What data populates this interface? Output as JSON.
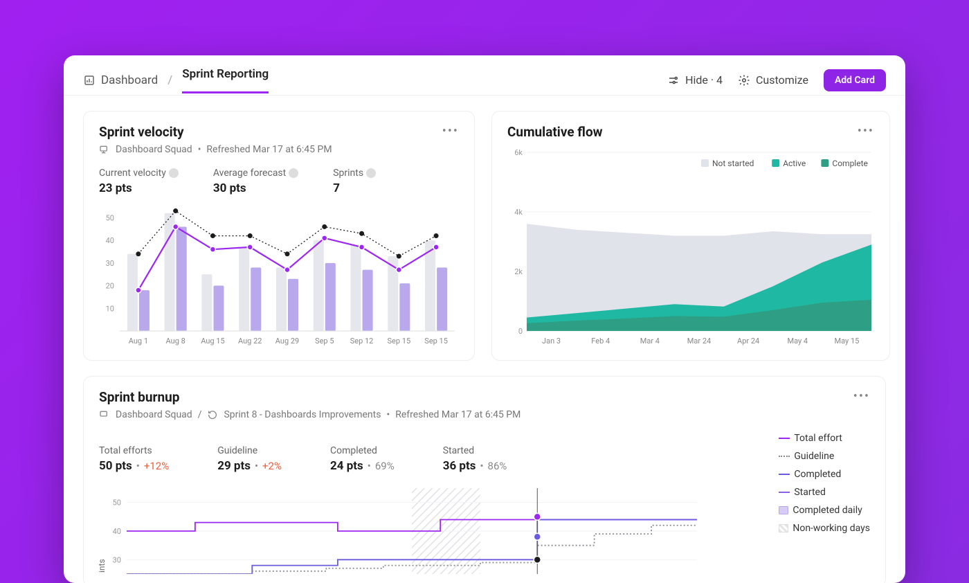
{
  "header": {
    "breadcrumb_root": "Dashboard",
    "breadcrumb_current": "Sprint Reporting",
    "hide_label": "Hide · 4",
    "customize_label": "Customize",
    "add_card_label": "Add Card",
    "accent_color": "#8e24e6"
  },
  "velocity_card": {
    "title": "Sprint velocity",
    "meta_squad": "Dashboard Squad",
    "meta_refreshed": "Refreshed Mar 17 at 6:45 PM",
    "kpis": {
      "current_label": "Current velocity",
      "current_value": "23 pts",
      "avg_label": "Average forecast",
      "avg_value": "30 pts",
      "sprints_label": "Sprints",
      "sprints_value": "7"
    },
    "chart": {
      "type": "bar+line",
      "x_labels": [
        "Aug 1",
        "Aug 8",
        "Aug 15",
        "Aug 22",
        "Aug 29",
        "Sep 5",
        "Sep 12",
        "Sep 15",
        "Sep 15"
      ],
      "y_ticks": [
        10,
        20,
        30,
        40,
        50
      ],
      "ylim": [
        0,
        55
      ],
      "bar_light_color": "#e6e6ed",
      "bar_purple_color": "#b9a9ec",
      "line_purple_color": "#9c27f0",
      "line_forecast_color": "#1c1c1c",
      "grid_color": "#f0f0f3",
      "label_fontsize": 11,
      "bars_light": [
        34,
        52,
        25,
        37,
        28,
        40,
        38,
        33,
        40
      ],
      "bars_purple": [
        18,
        46,
        20,
        28,
        23,
        30,
        27,
        21,
        28
      ],
      "points_purple": [
        18,
        46,
        36,
        37,
        27,
        41,
        37,
        27,
        37
      ],
      "points_black": [
        34,
        53,
        42,
        42,
        34,
        46,
        43,
        33,
        42
      ]
    }
  },
  "cumulative_card": {
    "title": "Cumulative flow",
    "legend": {
      "not_started": "Not started",
      "active": "Active",
      "complete": "Complete"
    },
    "chart": {
      "type": "area",
      "x_labels": [
        "Jan 3",
        "Feb 4",
        "Mar 4",
        "Mar 24",
        "Apr 24",
        "May 4",
        "May 15"
      ],
      "y_ticks": [
        "0",
        "2k",
        "4k",
        "6k"
      ],
      "ylim": [
        0,
        6000
      ],
      "colors": {
        "not_started": "#e1e3ea",
        "active": "#1fb9a3",
        "complete": "#2e9f85"
      },
      "grid_color": "#eef0f3",
      "series_top": [
        3600,
        3400,
        3300,
        3200,
        3200,
        3350,
        3250,
        3250
      ],
      "series_active": [
        450,
        600,
        750,
        900,
        820,
        1500,
        2300,
        2900
      ],
      "series_complete": [
        260,
        350,
        420,
        500,
        480,
        700,
        950,
        1050
      ]
    }
  },
  "burnup_card": {
    "title": "Sprint burnup",
    "meta_squad": "Dashboard Squad",
    "meta_sprint": "Sprint 8 - Dashboards Improvements",
    "meta_refreshed": "Refreshed Mar 17 at 6:45 PM",
    "kpis": {
      "total_label": "Total efforts",
      "total_value": "50 pts",
      "total_delta": "+12%",
      "guideline_label": "Guideline",
      "guideline_value": "29 pts",
      "guideline_delta": "+2%",
      "completed_label": "Completed",
      "completed_value": "24 pts",
      "completed_pct": "69%",
      "started_label": "Started",
      "started_value": "36 pts",
      "started_pct": "86%"
    },
    "legend": {
      "total": "Total effort",
      "guideline": "Guideline",
      "completed": "Completed",
      "started": "Started",
      "daily": "Completed daily",
      "nonworking": "Non-working days"
    },
    "chart": {
      "type": "burnup",
      "y_ticks": [
        30,
        40,
        50
      ],
      "ylim": [
        25,
        55
      ],
      "y_axis_label": "ints",
      "colors": {
        "total": "#9c27f0",
        "guideline": "#8a8a93",
        "completed": "#6a5ae0",
        "started": "#8a62e6",
        "daily_fill": "#d6ccf5"
      },
      "hatch_region": [
        0.5,
        0.62
      ],
      "total_steps": [
        [
          0.0,
          40
        ],
        [
          0.12,
          40
        ],
        [
          0.12,
          43
        ],
        [
          0.37,
          43
        ],
        [
          0.37,
          40
        ],
        [
          0.55,
          40
        ],
        [
          0.55,
          44
        ],
        [
          1.0,
          44
        ]
      ],
      "completed_steps": [
        [
          0.0,
          25
        ],
        [
          0.22,
          25
        ],
        [
          0.22,
          28
        ],
        [
          0.37,
          28
        ],
        [
          0.37,
          30
        ],
        [
          0.72,
          30
        ],
        [
          0.72,
          44
        ],
        [
          1.0,
          44
        ]
      ],
      "guideline_steps": [
        [
          0.0,
          25
        ],
        [
          0.22,
          25
        ],
        [
          0.22,
          26
        ],
        [
          0.35,
          26
        ],
        [
          0.35,
          27
        ],
        [
          0.45,
          27
        ],
        [
          0.45,
          28
        ],
        [
          0.62,
          28
        ],
        [
          0.62,
          29
        ],
        [
          0.72,
          29
        ],
        [
          0.72,
          35
        ],
        [
          0.82,
          35
        ],
        [
          0.82,
          39
        ],
        [
          0.92,
          39
        ],
        [
          0.92,
          42
        ],
        [
          1.0,
          42
        ]
      ],
      "markers": [
        {
          "x": 0.72,
          "y": 45,
          "color": "#9c27f0"
        },
        {
          "x": 0.72,
          "y": 38,
          "color": "#6a5ae0"
        },
        {
          "x": 0.72,
          "y": 30,
          "color": "#1c1c1c"
        }
      ]
    }
  }
}
